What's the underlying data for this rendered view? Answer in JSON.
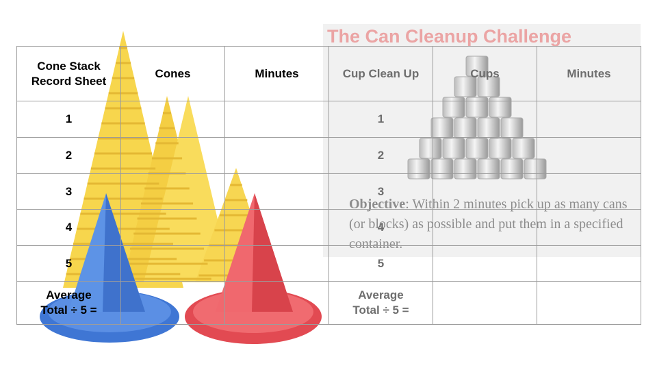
{
  "background": {
    "title": "The Can Cleanup Challenge",
    "objective_label": "Objective",
    "objective_text": ": Within 2 minutes pick up as many cans (or blocks) as possible and put them in a specified container."
  },
  "table": {
    "headers": [
      "Cone Stack Record Sheet",
      "Cones",
      "Minutes",
      "Cup Clean Up",
      "Cups",
      "Minutes"
    ],
    "rows": [
      {
        "left": "1",
        "right": "1"
      },
      {
        "left": "2",
        "right": "2"
      },
      {
        "left": "3",
        "right": "3"
      },
      {
        "left": "4",
        "right": "4"
      },
      {
        "left": "5",
        "right": "5"
      },
      {
        "left": "Average\nTotal ÷ 5 =",
        "right": "Average\nTotal ÷ 5 ="
      }
    ]
  }
}
